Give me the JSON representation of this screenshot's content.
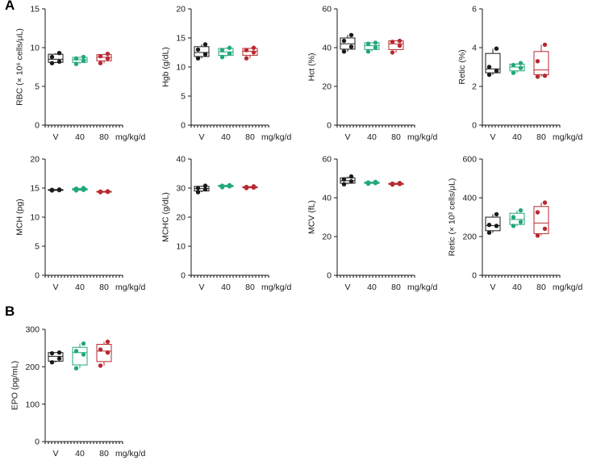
{
  "panel_labels": [
    "A",
    "B"
  ],
  "x_unit": "mg/kg/d",
  "colors": {
    "V": "#1a1a1a",
    "40": "#22a877",
    "80": "#b72a30",
    "axis": "#1a1a1a"
  },
  "chart_data": [
    {
      "type": "box",
      "panel": "A",
      "id": "rbc",
      "ylabel": "RBC (× 10⁶ cells/μL)",
      "categories": [
        "V",
        "40",
        "80"
      ],
      "ylim": [
        0,
        15
      ],
      "yticks": [
        0,
        5,
        10,
        15
      ],
      "series": [
        {
          "name": "V",
          "points": [
            8.0,
            8.2,
            8.8,
            9.3
          ],
          "box": {
            "min": 8.0,
            "q1": 8.1,
            "median": 8.5,
            "q3": 9.15,
            "max": 9.3
          }
        },
        {
          "name": "40",
          "points": [
            7.9,
            8.3,
            8.6,
            8.8
          ],
          "box": {
            "min": 7.9,
            "q1": 8.1,
            "median": 8.45,
            "q3": 8.75,
            "max": 8.8
          }
        },
        {
          "name": "80",
          "points": [
            8.0,
            8.6,
            8.9,
            9.2
          ],
          "box": {
            "min": 8.0,
            "q1": 8.3,
            "median": 8.75,
            "q3": 9.1,
            "max": 9.2
          }
        }
      ]
    },
    {
      "type": "box",
      "panel": "A",
      "id": "hgb",
      "ylabel": "Hgb (g/dL)",
      "categories": [
        "V",
        "40",
        "80"
      ],
      "ylim": [
        0,
        20
      ],
      "yticks": [
        0,
        5,
        10,
        15,
        20
      ],
      "series": [
        {
          "name": "V",
          "points": [
            11.5,
            12.2,
            13.0,
            13.9
          ],
          "box": {
            "min": 11.5,
            "q1": 11.8,
            "median": 12.5,
            "q3": 13.5,
            "max": 13.9
          }
        },
        {
          "name": "40",
          "points": [
            11.7,
            12.3,
            12.9,
            13.3
          ],
          "box": {
            "min": 11.7,
            "q1": 12.0,
            "median": 12.6,
            "q3": 13.2,
            "max": 13.3
          }
        },
        {
          "name": "80",
          "points": [
            11.5,
            12.5,
            12.9,
            13.3
          ],
          "box": {
            "min": 11.5,
            "q1": 12.0,
            "median": 12.7,
            "q3": 13.2,
            "max": 13.3
          }
        }
      ]
    },
    {
      "type": "box",
      "panel": "A",
      "id": "hct",
      "ylabel": "Hct (%)",
      "categories": [
        "V",
        "40",
        "80"
      ],
      "ylim": [
        0,
        60
      ],
      "yticks": [
        0,
        20,
        40,
        60
      ],
      "series": [
        {
          "name": "V",
          "points": [
            38.0,
            40.5,
            43.5,
            46.5
          ],
          "box": {
            "min": 38.0,
            "q1": 39.2,
            "median": 42.0,
            "q3": 45.0,
            "max": 46.5
          }
        },
        {
          "name": "40",
          "points": [
            38.0,
            40.0,
            42.0,
            42.5
          ],
          "box": {
            "min": 38.0,
            "q1": 39.0,
            "median": 41.0,
            "q3": 42.5,
            "max": 42.5
          }
        },
        {
          "name": "80",
          "points": [
            37.5,
            41.0,
            43.0,
            43.5
          ],
          "box": {
            "min": 37.5,
            "q1": 39.0,
            "median": 42.0,
            "q3": 43.5,
            "max": 43.5
          }
        }
      ]
    },
    {
      "type": "box",
      "panel": "A",
      "id": "retic-pct",
      "ylabel": "Retic (%)",
      "categories": [
        "V",
        "40",
        "80"
      ],
      "ylim": [
        0,
        6
      ],
      "yticks": [
        0,
        2,
        4,
        6
      ],
      "series": [
        {
          "name": "V",
          "points": [
            2.6,
            2.8,
            3.0,
            3.95
          ],
          "box": {
            "min": 2.6,
            "q1": 2.7,
            "median": 2.9,
            "q3": 3.7,
            "max": 3.95
          }
        },
        {
          "name": "40",
          "points": [
            2.7,
            2.95,
            3.1,
            3.2
          ],
          "box": {
            "min": 2.7,
            "q1": 2.8,
            "median": 3.0,
            "q3": 3.15,
            "max": 3.2
          }
        },
        {
          "name": "80",
          "points": [
            2.5,
            2.55,
            3.3,
            4.15
          ],
          "box": {
            "min": 2.5,
            "q1": 2.6,
            "median": 2.85,
            "q3": 3.8,
            "max": 4.15
          }
        }
      ]
    },
    {
      "type": "box",
      "panel": "A",
      "id": "mch",
      "ylabel": "MCH (pg)",
      "categories": [
        "V",
        "40",
        "80"
      ],
      "ylim": [
        0,
        20
      ],
      "yticks": [
        0,
        5,
        10,
        15,
        20
      ],
      "series": [
        {
          "name": "V",
          "points": [
            14.6,
            14.65,
            14.7,
            14.75
          ],
          "box": {
            "min": 14.6,
            "q1": 14.6,
            "median": 14.65,
            "q3": 14.75,
            "max": 14.75
          }
        },
        {
          "name": "40",
          "points": [
            14.6,
            14.7,
            14.9,
            15.0
          ],
          "box": {
            "min": 14.6,
            "q1": 14.65,
            "median": 14.8,
            "q3": 14.95,
            "max": 15.0
          }
        },
        {
          "name": "80",
          "points": [
            14.3,
            14.35,
            14.4,
            14.45
          ],
          "box": {
            "min": 14.3,
            "q1": 14.3,
            "median": 14.35,
            "q3": 14.45,
            "max": 14.45
          }
        }
      ]
    },
    {
      "type": "box",
      "panel": "A",
      "id": "mchc",
      "ylabel": "MCHC (g/dL)",
      "categories": [
        "V",
        "40",
        "80"
      ],
      "ylim": [
        0,
        40
      ],
      "yticks": [
        0,
        10,
        20,
        30,
        40
      ],
      "series": [
        {
          "name": "V",
          "points": [
            28.6,
            29.6,
            30.0,
            30.8
          ],
          "box": {
            "min": 28.6,
            "q1": 29.0,
            "median": 29.8,
            "q3": 30.6,
            "max": 30.8
          }
        },
        {
          "name": "40",
          "points": [
            30.3,
            30.6,
            30.8,
            31.0
          ],
          "box": {
            "min": 30.3,
            "q1": 30.5,
            "median": 30.7,
            "q3": 31.0,
            "max": 31.0
          }
        },
        {
          "name": "80",
          "points": [
            30.0,
            30.2,
            30.4,
            30.6
          ],
          "box": {
            "min": 30.0,
            "q1": 30.1,
            "median": 30.3,
            "q3": 30.5,
            "max": 30.6
          }
        }
      ]
    },
    {
      "type": "box",
      "panel": "A",
      "id": "mcv",
      "ylabel": "MCV (fL)",
      "categories": [
        "V",
        "40",
        "80"
      ],
      "ylim": [
        0,
        60
      ],
      "yticks": [
        0,
        20,
        40,
        60
      ],
      "series": [
        {
          "name": "V",
          "points": [
            47.0,
            48.5,
            49.5,
            51.0
          ],
          "box": {
            "min": 47.0,
            "q1": 47.5,
            "median": 48.8,
            "q3": 50.3,
            "max": 51.0
          }
        },
        {
          "name": "40",
          "points": [
            47.3,
            47.6,
            47.9,
            48.2
          ],
          "box": {
            "min": 47.3,
            "q1": 47.4,
            "median": 47.8,
            "q3": 48.1,
            "max": 48.2
          }
        },
        {
          "name": "80",
          "points": [
            46.8,
            47.1,
            47.3,
            47.6
          ],
          "box": {
            "min": 46.8,
            "q1": 46.9,
            "median": 47.2,
            "q3": 47.5,
            "max": 47.6
          }
        }
      ]
    },
    {
      "type": "box",
      "panel": "A",
      "id": "retic-abs",
      "ylabel": "Retic (× 10³ cells/μL)",
      "categories": [
        "V",
        "40",
        "80"
      ],
      "ylim": [
        0,
        600
      ],
      "yticks": [
        0,
        200,
        400,
        600
      ],
      "series": [
        {
          "name": "V",
          "points": [
            220,
            255,
            260,
            315
          ],
          "box": {
            "min": 220,
            "q1": 230,
            "median": 257,
            "q3": 300,
            "max": 315
          }
        },
        {
          "name": "40",
          "points": [
            255,
            275,
            300,
            335
          ],
          "box": {
            "min": 255,
            "q1": 262,
            "median": 288,
            "q3": 320,
            "max": 335
          }
        },
        {
          "name": "80",
          "points": [
            205,
            240,
            325,
            375
          ],
          "box": {
            "min": 205,
            "q1": 215,
            "median": 270,
            "q3": 355,
            "max": 375
          }
        }
      ]
    },
    {
      "type": "box",
      "panel": "B",
      "id": "epo",
      "ylabel": "EPO (pg/mL)",
      "categories": [
        "V",
        "40",
        "80"
      ],
      "ylim": [
        0,
        300
      ],
      "yticks": [
        0,
        100,
        200,
        300
      ],
      "series": [
        {
          "name": "V",
          "points": [
            212,
            222,
            236,
            238
          ],
          "box": {
            "min": 212,
            "q1": 215,
            "median": 228,
            "q3": 238,
            "max": 238
          }
        },
        {
          "name": "40",
          "points": [
            196,
            233,
            242,
            262
          ],
          "box": {
            "min": 196,
            "q1": 205,
            "median": 238,
            "q3": 252,
            "max": 262
          }
        },
        {
          "name": "80",
          "points": [
            203,
            238,
            246,
            267
          ],
          "box": {
            "min": 203,
            "q1": 214,
            "median": 242,
            "q3": 260,
            "max": 267
          }
        }
      ]
    }
  ]
}
